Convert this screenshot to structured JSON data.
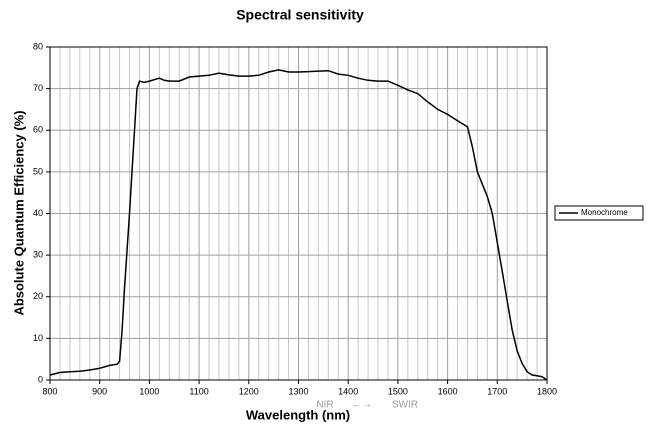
{
  "chart_data": {
    "type": "line",
    "title": "Spectral sensitivity",
    "x_label": "Wavelength (nm)",
    "y_label": "Absolute Quantum Efficiency (%)",
    "annotations": [
      "NIR",
      "←→",
      "SWIR"
    ],
    "x": [
      800,
      820,
      840,
      860,
      880,
      900,
      920,
      935,
      940,
      945,
      950,
      960,
      970,
      975,
      980,
      990,
      1000,
      1020,
      1030,
      1040,
      1060,
      1080,
      1100,
      1120,
      1140,
      1160,
      1180,
      1200,
      1220,
      1240,
      1260,
      1280,
      1300,
      1320,
      1340,
      1360,
      1380,
      1400,
      1420,
      1440,
      1460,
      1480,
      1500,
      1520,
      1540,
      1560,
      1580,
      1600,
      1620,
      1640,
      1650,
      1660,
      1680,
      1690,
      1700,
      1710,
      1720,
      1730,
      1740,
      1750,
      1760,
      1770,
      1780,
      1790,
      1800
    ],
    "series": [
      {
        "name": "Monochrome",
        "color": "#000000",
        "values": [
          1.2,
          1.8,
          2,
          2.1,
          2.4,
          2.8,
          3.5,
          3.8,
          4.5,
          12,
          22,
          40,
          60,
          70,
          71.8,
          71.5,
          71.8,
          72.5,
          72,
          71.8,
          71.8,
          72.8,
          73,
          73.2,
          73.7,
          73.3,
          73,
          73,
          73.2,
          74,
          74.5,
          74,
          74,
          74.1,
          74.2,
          74.3,
          73.5,
          73.2,
          72.5,
          72,
          71.8,
          71.8,
          70.8,
          69.7,
          68.8,
          66.8,
          65,
          63.8,
          62.3,
          60.8,
          56,
          50,
          44,
          40,
          33,
          26,
          19,
          12,
          7,
          4,
          2,
          1.2,
          1,
          0.8,
          0
        ]
      }
    ],
    "xlim": [
      800,
      1800
    ],
    "xticks": [
      800,
      900,
      1000,
      1100,
      1200,
      1300,
      1400,
      1500,
      1600,
      1700,
      1800
    ],
    "ylim": [
      0,
      80
    ],
    "yticks": [
      0,
      10,
      20,
      30,
      40,
      50,
      60,
      70,
      80
    ],
    "grid": true,
    "minor_grid_divisions": 5,
    "legend": "right"
  }
}
